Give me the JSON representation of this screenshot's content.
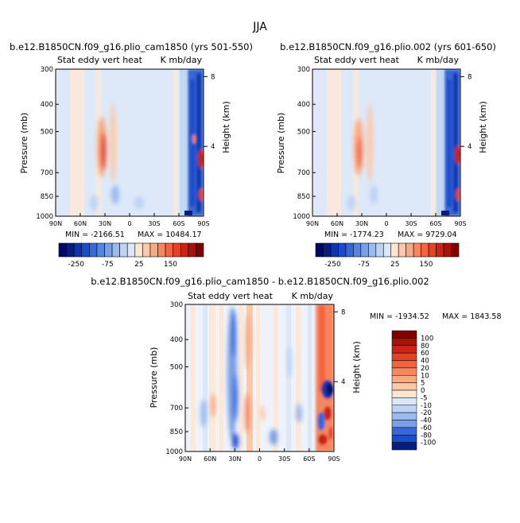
{
  "season": "JJA",
  "colors": {
    "positive": [
      "#fee6d2",
      "#fcc9a8",
      "#f9a882",
      "#f7865e",
      "#f26440",
      "#e44226",
      "#cc2414",
      "#a8120a",
      "#800000"
    ],
    "negative": [
      "#dbe8fa",
      "#bcd3f4",
      "#9bbbee",
      "#799fe6",
      "#5784e0",
      "#3668d6",
      "#1c4ccc",
      "#1034aa",
      "#081d80",
      "#00096b"
    ],
    "background": "#dde9f8"
  },
  "chart_data": [
    {
      "type": "heatmap",
      "title": "b.e12.B1850CN.f09_g16.plio_cam1850 (yrs 501-550)",
      "subtitle_left": "Stat eddy vert heat",
      "subtitle_right": "K mb/day",
      "ylabel": "Pressure (mb)",
      "y2label": "Height (km)",
      "xticks": [
        "90N",
        "60N",
        "30N",
        "0",
        "30S",
        "60S",
        "90S"
      ],
      "xlim": [
        90,
        -90
      ],
      "yticks": [
        300,
        400,
        500,
        700,
        850,
        1000
      ],
      "ylim": [
        1000,
        300
      ],
      "y2ticks": [
        "8",
        "4"
      ],
      "min_label": "MIN = -2166.51",
      "max_label": "MAX = 10484.17",
      "colorbar_labels": [
        "-250",
        "-75",
        "25",
        "150"
      ]
    },
    {
      "type": "heatmap",
      "title": "b.e12.B1850CN.f09_g16.plio.002 (yrs 601-650)",
      "subtitle_left": "Stat eddy vert heat",
      "subtitle_right": "K mb/day",
      "ylabel": "Pressure (mb)",
      "y2label": "Height (km)",
      "xticks": [
        "90N",
        "60N",
        "30N",
        "0",
        "30S",
        "60S",
        "90S"
      ],
      "xlim": [
        90,
        -90
      ],
      "yticks": [
        300,
        400,
        500,
        700,
        850,
        1000
      ],
      "ylim": [
        1000,
        300
      ],
      "y2ticks": [
        "8",
        "4"
      ],
      "min_label": "MIN = -1774.23",
      "max_label": "MAX = 9729.04",
      "colorbar_labels": [
        "-250",
        "-75",
        "25",
        "150"
      ]
    },
    {
      "type": "heatmap",
      "title": "b.e12.B1850CN.f09_g16.plio_cam1850 - b.e12.B1850CN.f09_g16.plio.002",
      "subtitle_left": "Stat eddy vert heat",
      "subtitle_right": "K mb/day",
      "ylabel": "Pressure (mb)",
      "y2label": "Height (km)",
      "xticks": [
        "90N",
        "60N",
        "30N",
        "0",
        "30S",
        "60S",
        "90S"
      ],
      "xlim": [
        90,
        -90
      ],
      "yticks": [
        300,
        400,
        500,
        700,
        850,
        1000
      ],
      "ylim": [
        1000,
        300
      ],
      "y2ticks": [
        "8",
        "4"
      ],
      "min_label": "MIN = -1934.52",
      "max_label": "MAX = 1843.58",
      "colorbar_labels": [
        "100",
        "80",
        "60",
        "40",
        "20",
        "10",
        "5",
        "0",
        "-5",
        "-10",
        "-20",
        "-40",
        "-60",
        "-80",
        "-100"
      ]
    }
  ]
}
